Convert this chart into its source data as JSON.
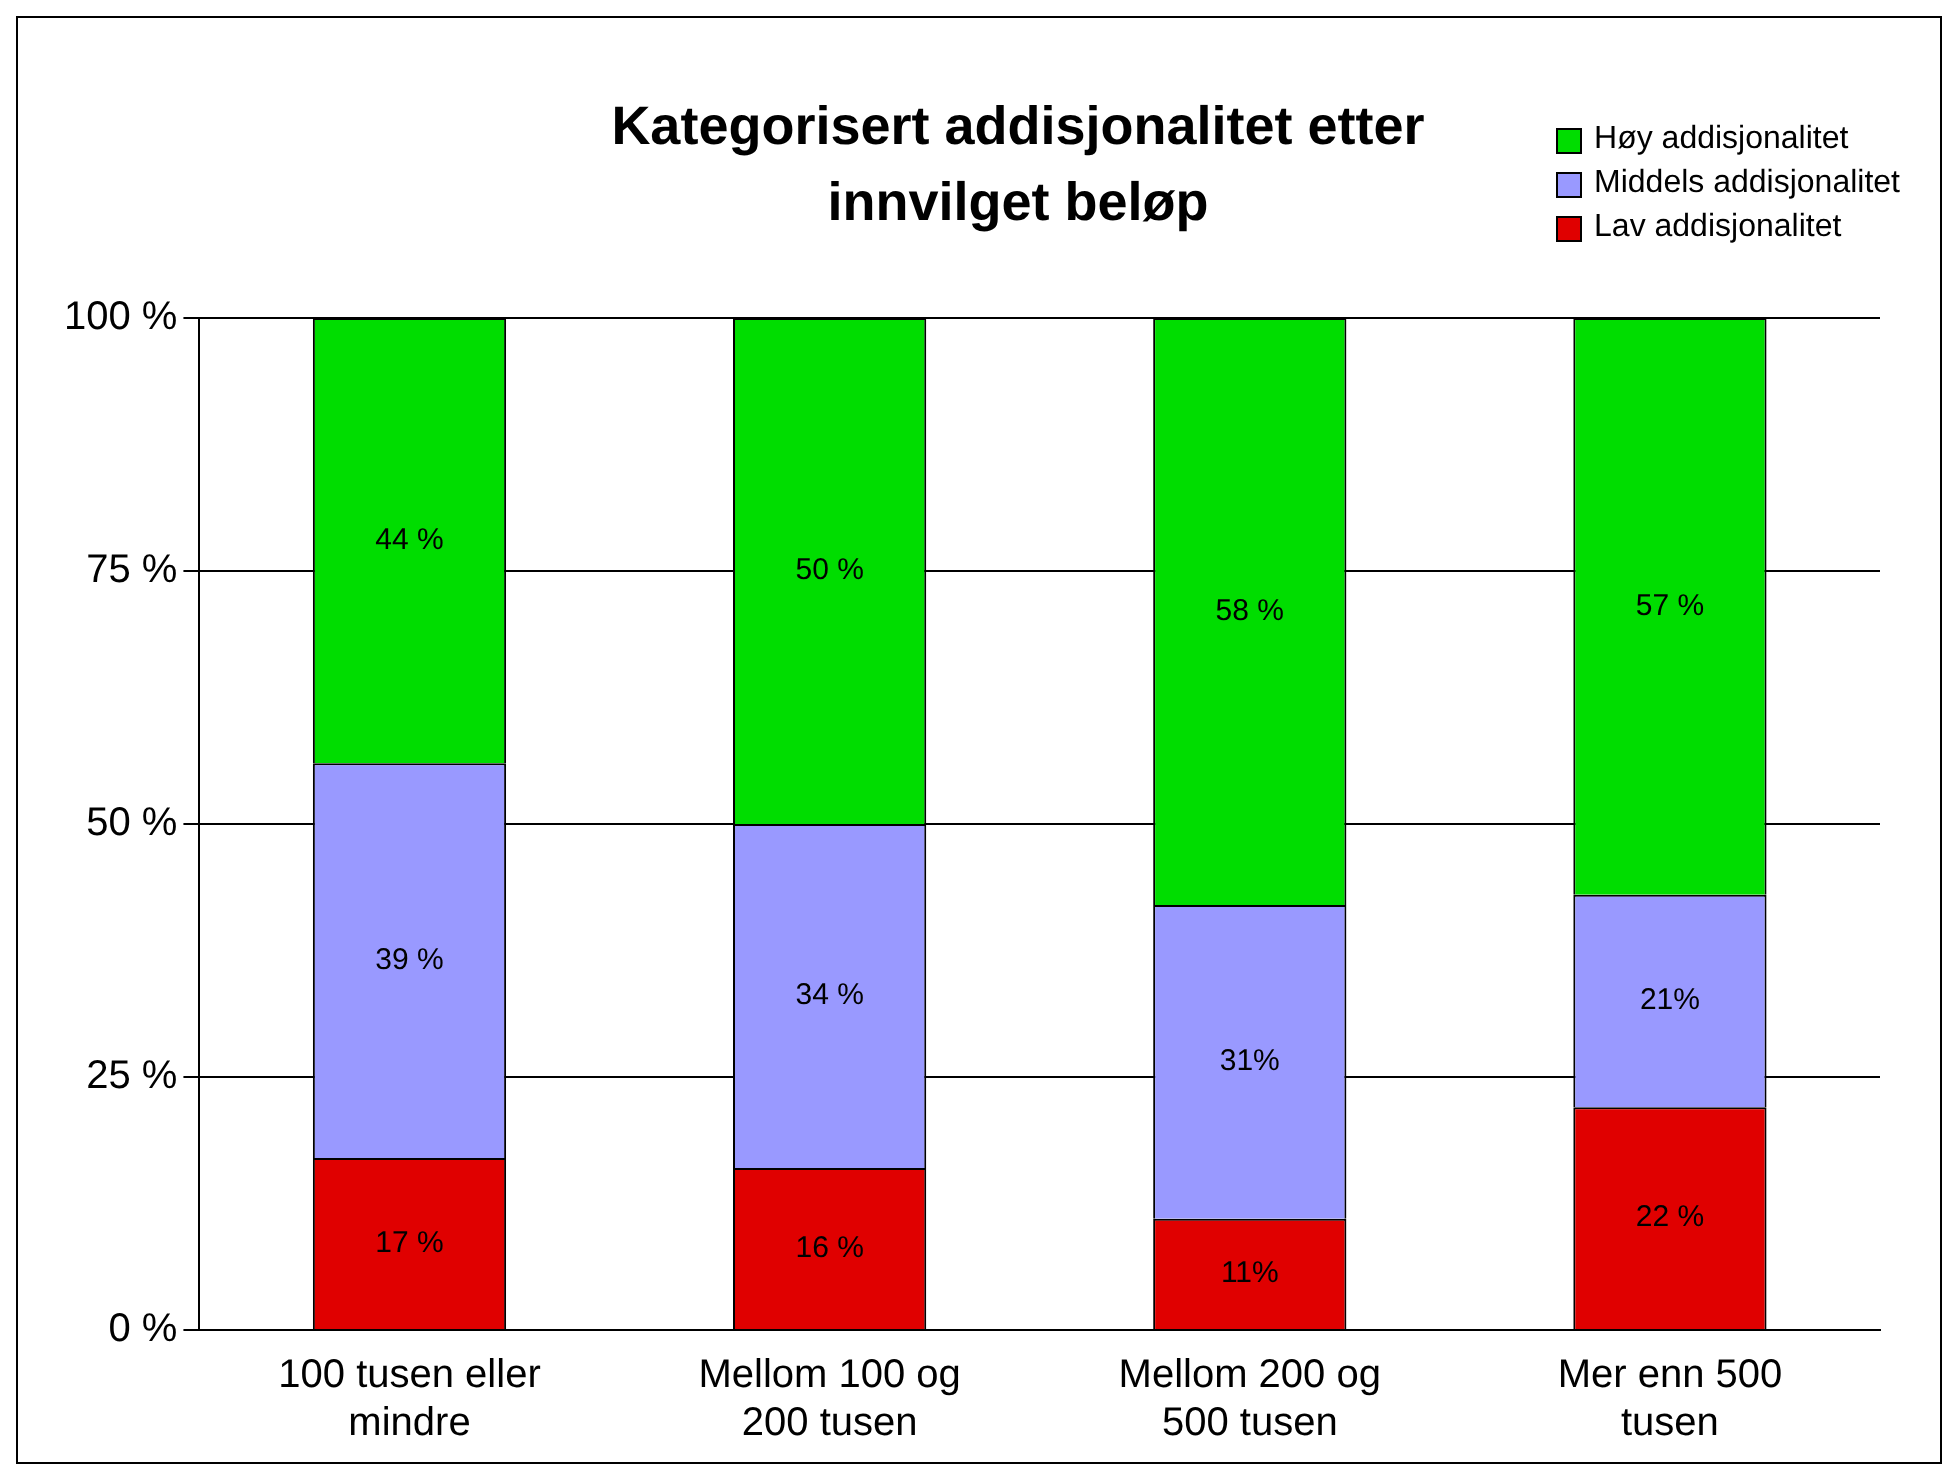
{
  "chart_data": {
    "type": "bar",
    "title": "Kategorisert addisjonalitet etter innvilget beløp",
    "categories": [
      "100 tusen eller mindre",
      "Mellom 100 og 200 tusen",
      "Mellom 200 og 500 tusen",
      "Mer enn 500 tusen"
    ],
    "stacked": true,
    "series": [
      {
        "name": "Lav addisjonalitet",
        "color": "#e00000",
        "values": [
          17,
          16,
          11,
          22
        ],
        "value_labels": [
          "17 %",
          "16 %",
          "11%",
          "22 %"
        ]
      },
      {
        "name": "Middels addisjonalitet",
        "color": "#9999ff",
        "values": [
          39,
          34,
          31,
          21
        ],
        "value_labels": [
          "39 %",
          "34 %",
          "31%",
          "21%"
        ]
      },
      {
        "name": "Høy addisjonalitet",
        "color": "#00dd00",
        "values": [
          44,
          50,
          58,
          57
        ],
        "value_labels": [
          "44 %",
          "50 %",
          "58 %",
          "57 %"
        ]
      }
    ],
    "ylim": [
      0,
      100
    ],
    "yticks": [
      {
        "value": 0,
        "label": "0 %"
      },
      {
        "value": 25,
        "label": "25 %"
      },
      {
        "value": 50,
        "label": "50 %"
      },
      {
        "value": 75,
        "label": "75 %"
      },
      {
        "value": 100,
        "label": "100 %"
      }
    ],
    "grid": "y",
    "legend": "top right"
  }
}
